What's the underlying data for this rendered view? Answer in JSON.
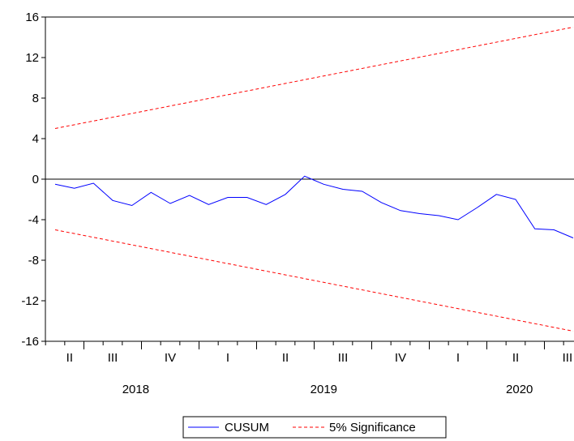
{
  "chart_data": {
    "type": "line",
    "title": "",
    "xlabel": "",
    "ylabel": "",
    "ylim": [
      -16,
      16
    ],
    "yticks": [
      "16",
      "12",
      "8",
      "4",
      "0",
      "-4",
      "-8",
      "-12",
      "-16"
    ],
    "ytick_values": [
      16,
      12,
      8,
      4,
      0,
      -4,
      -8,
      -12,
      -16
    ],
    "quarters": [
      "II",
      "III",
      "IV",
      "I",
      "II",
      "III",
      "IV",
      "I",
      "II",
      "III"
    ],
    "years": [
      "2018",
      "2019",
      "2020"
    ],
    "n_months": 28,
    "series": [
      {
        "name": "CUSUM",
        "color": "#0000ff",
        "style": "solid",
        "values": [
          -0.5,
          -0.9,
          -0.4,
          -2.1,
          -2.6,
          -1.3,
          -2.4,
          -1.6,
          -2.5,
          -1.8,
          -1.8,
          -2.5,
          -1.5,
          0.3,
          -0.5,
          -1.0,
          -1.2,
          -2.3,
          -3.1,
          -3.4,
          -3.6,
          -4.0,
          -2.8,
          -1.5,
          -2.0,
          -4.9,
          -5.0,
          -5.8
        ]
      },
      {
        "name": "5% Significance",
        "color": "#ff0000",
        "style": "dashed",
        "upper": [
          5.0,
          15.0
        ],
        "lower": [
          -5.0,
          -15.0
        ]
      }
    ],
    "zero_line": 0,
    "grid": false,
    "legend_position": "bottom-center",
    "legend": [
      "CUSUM",
      "5% Significance"
    ]
  }
}
